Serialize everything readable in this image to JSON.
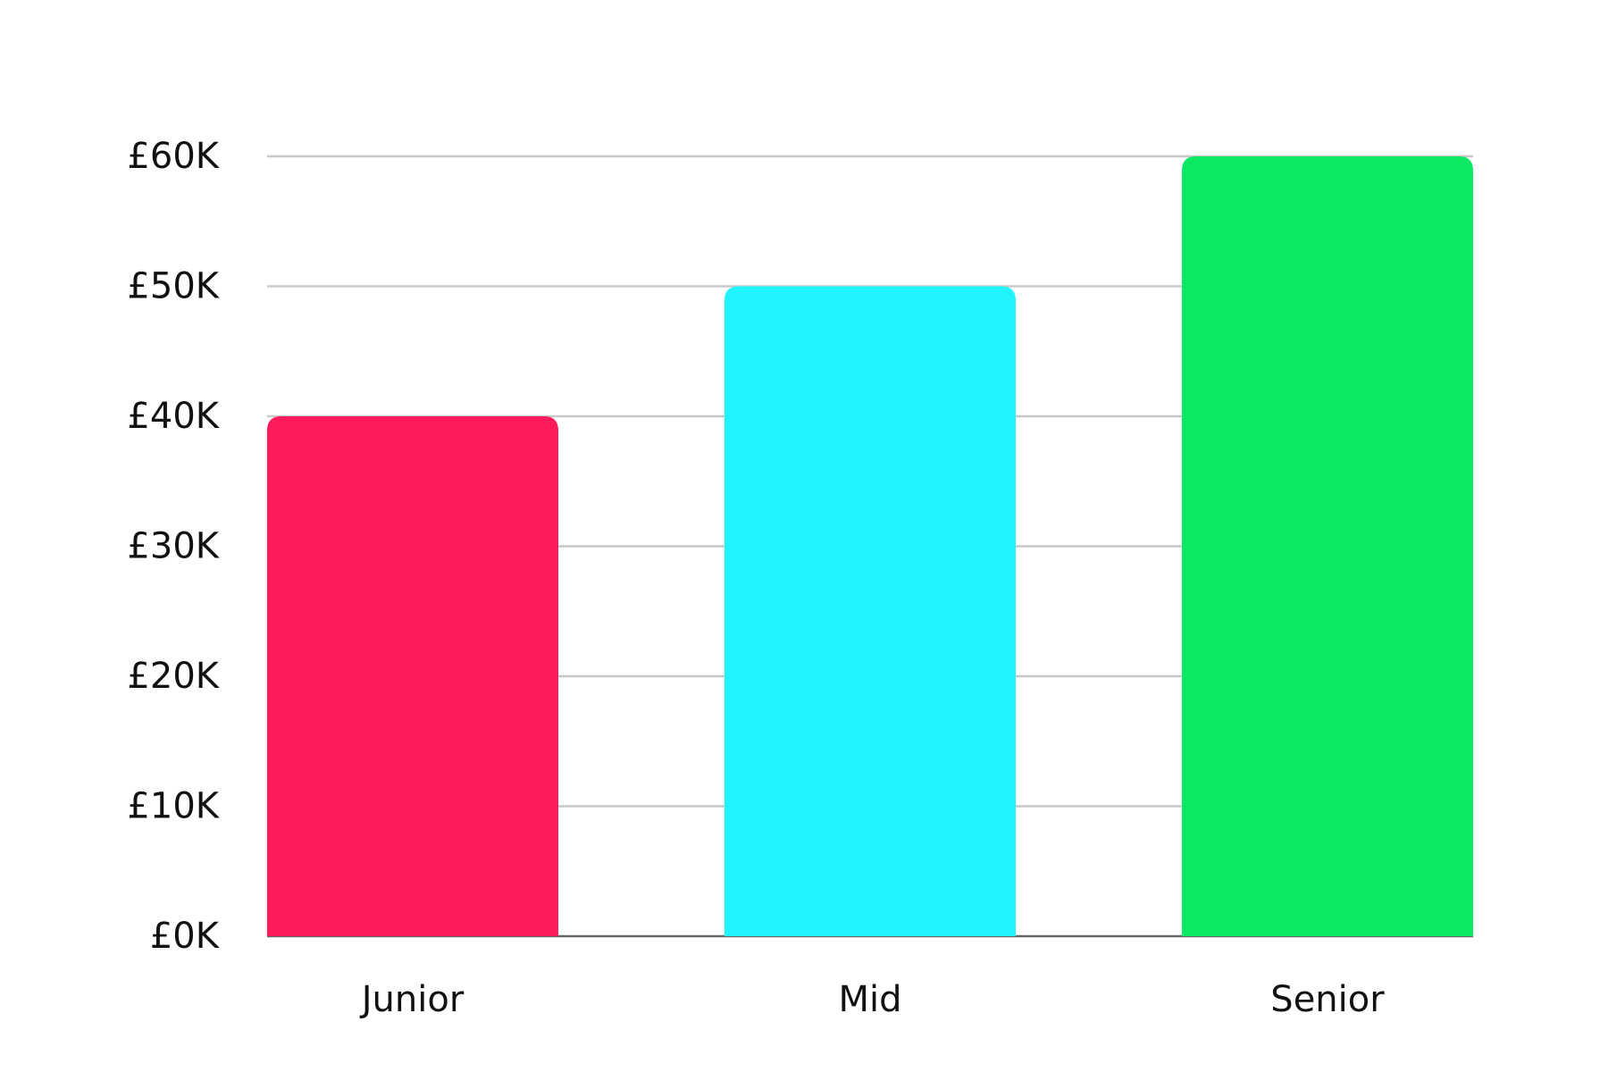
{
  "chart_data": {
    "type": "bar",
    "categories": [
      "Junior",
      "Mid",
      "Senior"
    ],
    "values": [
      40000,
      50000,
      60000
    ],
    "colors": [
      "#ff1a5c",
      "#1ff4ff",
      "#0be964"
    ],
    "ylim": [
      0,
      60000
    ],
    "yticks": [
      {
        "value": 0,
        "label": "£0K"
      },
      {
        "value": 10000,
        "label": "£10K"
      },
      {
        "value": 20000,
        "label": "£20K"
      },
      {
        "value": 30000,
        "label": "£30K"
      },
      {
        "value": 40000,
        "label": "£40K"
      },
      {
        "value": 50000,
        "label": "£50K"
      },
      {
        "value": 60000,
        "label": "£60K"
      }
    ],
    "grid": true
  }
}
